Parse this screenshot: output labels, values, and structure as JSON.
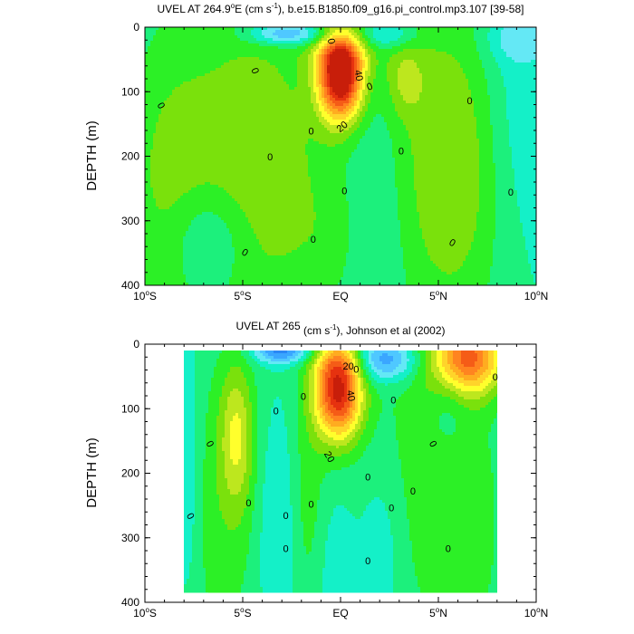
{
  "chart_data": [
    {
      "type": "heatmap",
      "title": "UVEL AT 264.9°E (cm s⁻¹), b.e15.B1850.f09_g16.pi_control.mp3.107 [39-58]",
      "title_main": "UVEL AT 264.9",
      "title_deg": "o",
      "title_mid": "E (cm s",
      "title_sup": "-1",
      "title_end": "), b.e15.B1850.f09_g16.pi_control.mp3.107 [39-58]",
      "xlabel": "",
      "ylabel": "DEPTH (m)",
      "xlim": [
        -10,
        10
      ],
      "ylim": [
        0,
        400
      ],
      "y_inverted": true,
      "x_ticks": [
        {
          "v": -10,
          "num": "10",
          "deg": "o",
          "hemi": "S"
        },
        {
          "v": -5,
          "num": "5",
          "deg": "o",
          "hemi": "S"
        },
        {
          "v": 0,
          "num": "EQ",
          "deg": "",
          "hemi": ""
        },
        {
          "v": 5,
          "num": "5",
          "deg": "o",
          "hemi": "N"
        },
        {
          "v": 10,
          "num": "10",
          "deg": "o",
          "hemi": "N"
        }
      ],
      "y_ticks": [
        "0",
        "100",
        "200",
        "300",
        "400"
      ],
      "y_tick_values": [
        0,
        100,
        200,
        300,
        400
      ],
      "grid": false,
      "contour_interval": 5,
      "contour_labels": [
        {
          "text": "40",
          "x": 0.9,
          "y": 75,
          "rot": 80
        },
        {
          "text": "20",
          "x": 0.1,
          "y": 155,
          "rot": -40
        },
        {
          "text": "0",
          "x": -0.5,
          "y": 22,
          "rot": 80
        },
        {
          "text": "0",
          "x": -4.4,
          "y": 68,
          "rot": 70
        },
        {
          "text": "0",
          "x": -3.6,
          "y": 202,
          "rot": 0
        },
        {
          "text": "0",
          "x": -1.5,
          "y": 162,
          "rot": 0
        },
        {
          "text": "0",
          "x": 1.5,
          "y": 93,
          "rot": -20
        },
        {
          "text": "0",
          "x": 3.1,
          "y": 193,
          "rot": 0
        },
        {
          "text": "0",
          "x": 0.2,
          "y": 255,
          "rot": 0
        },
        {
          "text": "0",
          "x": -1.4,
          "y": 330,
          "rot": 0
        },
        {
          "text": "0",
          "x": -4.9,
          "y": 350,
          "rot": 30
        },
        {
          "text": "0",
          "x": -9.2,
          "y": 122,
          "rot": 60
        },
        {
          "text": "0",
          "x": 6.6,
          "y": 115,
          "rot": 0
        },
        {
          "text": "0",
          "x": 8.7,
          "y": 257,
          "rot": 0
        },
        {
          "text": "0",
          "x": 5.7,
          "y": 335,
          "rot": 30
        }
      ],
      "features": [
        {
          "x": 0.0,
          "y": 75,
          "sx": 0.8,
          "sy": 48,
          "amp": 58
        },
        {
          "x": 0.1,
          "y": 45,
          "sx": 1.2,
          "sy": 18,
          "amp": 8
        },
        {
          "x": -4.5,
          "y": 210,
          "sx": 3.0,
          "sy": 200,
          "amp": 14
        },
        {
          "x": -9.0,
          "y": 250,
          "sx": 1.6,
          "sy": 170,
          "amp": 8
        },
        {
          "x": -6.8,
          "y": 330,
          "sx": 1.4,
          "sy": 60,
          "amp": -10
        },
        {
          "x": -2.8,
          "y": 10,
          "sx": 1.4,
          "sy": 12,
          "amp": -20
        },
        {
          "x": 2.6,
          "y": 12,
          "sx": 1.0,
          "sy": 14,
          "amp": -10
        },
        {
          "x": 9.2,
          "y": 20,
          "sx": 1.2,
          "sy": 25,
          "amp": -8
        },
        {
          "x": 3.3,
          "y": 80,
          "sx": 0.7,
          "sy": 40,
          "amp": 10
        },
        {
          "x": 4.3,
          "y": 200,
          "sx": 2.0,
          "sy": 220,
          "amp": 10
        },
        {
          "x": 6.5,
          "y": 220,
          "sx": 1.5,
          "sy": 170,
          "amp": 8
        },
        {
          "x": 8.8,
          "y": 120,
          "sx": 1.2,
          "sy": 150,
          "amp": -4
        },
        {
          "x": 1.8,
          "y": 300,
          "sx": 1.2,
          "sy": 150,
          "amp": -6
        },
        {
          "x": -0.2,
          "y": 330,
          "sx": 1.5,
          "sy": 80,
          "amp": 4
        }
      ]
    },
    {
      "type": "heatmap",
      "title": "UVEL AT 265 (cm s⁻¹), Johnson et al (2002)",
      "title_main": "UVEL AT 265",
      "title_deg": "",
      "title_mid": " (cm s",
      "title_sup": "-1",
      "title_end": "), Johnson et al (2002)",
      "xlabel": "",
      "ylabel": "DEPTH (m)",
      "xlim": [
        -10,
        10
      ],
      "ylim": [
        0,
        400
      ],
      "y_inverted": true,
      "data_xrange": [
        -8,
        8
      ],
      "data_yrange": [
        10,
        385
      ],
      "x_ticks": [
        {
          "v": -10,
          "num": "10",
          "deg": "o",
          "hemi": "S"
        },
        {
          "v": -5,
          "num": "5",
          "deg": "o",
          "hemi": "S"
        },
        {
          "v": 0,
          "num": "EQ",
          "deg": "",
          "hemi": ""
        },
        {
          "v": 5,
          "num": "5",
          "deg": "o",
          "hemi": "N"
        },
        {
          "v": 10,
          "num": "10",
          "deg": "o",
          "hemi": "N"
        }
      ],
      "y_ticks": [
        "0",
        "100",
        "200",
        "300",
        "400"
      ],
      "y_tick_values": [
        0,
        100,
        200,
        300,
        400
      ],
      "grid": false,
      "contour_interval": 5,
      "contour_labels": [
        {
          "text": "20",
          "x": 0.4,
          "y": 35,
          "rot": 0
        },
        {
          "text": "40",
          "x": 0.5,
          "y": 80,
          "rot": 80
        },
        {
          "text": "20",
          "x": -0.6,
          "y": 175,
          "rot": 60
        },
        {
          "text": "0",
          "x": 0.8,
          "y": 40,
          "rot": 0
        },
        {
          "text": "0",
          "x": -1.9,
          "y": 82,
          "rot": 0
        },
        {
          "text": "0",
          "x": -3.3,
          "y": 105,
          "rot": 0
        },
        {
          "text": "0",
          "x": -6.7,
          "y": 155,
          "rot": 60
        },
        {
          "text": "0",
          "x": -7.7,
          "y": 267,
          "rot": 60
        },
        {
          "text": "0",
          "x": -4.7,
          "y": 247,
          "rot": 0
        },
        {
          "text": "0",
          "x": -2.8,
          "y": 267,
          "rot": 0
        },
        {
          "text": "0",
          "x": -2.8,
          "y": 318,
          "rot": 0
        },
        {
          "text": "0",
          "x": -1.5,
          "y": 249,
          "rot": 0
        },
        {
          "text": "0",
          "x": 1.4,
          "y": 207,
          "rot": 0
        },
        {
          "text": "0",
          "x": 1.4,
          "y": 337,
          "rot": 0
        },
        {
          "text": "0",
          "x": 2.7,
          "y": 88,
          "rot": 0
        },
        {
          "text": "0",
          "x": 2.6,
          "y": 255,
          "rot": 0
        },
        {
          "text": "0",
          "x": 3.7,
          "y": 229,
          "rot": 0
        },
        {
          "text": "0",
          "x": 4.7,
          "y": 155,
          "rot": 60
        },
        {
          "text": "0",
          "x": 5.5,
          "y": 318,
          "rot": 0
        },
        {
          "text": "0",
          "x": 7.9,
          "y": 52,
          "rot": 0
        }
      ],
      "features": [
        {
          "x": -0.1,
          "y": 70,
          "sx": 0.85,
          "sy": 55,
          "amp": 52
        },
        {
          "x": 0.2,
          "y": 30,
          "sx": 1.2,
          "sy": 16,
          "amp": 6
        },
        {
          "x": -5.3,
          "y": 140,
          "sx": 0.6,
          "sy": 80,
          "amp": 16
        },
        {
          "x": -6.0,
          "y": 250,
          "sx": 2.0,
          "sy": 180,
          "amp": 8
        },
        {
          "x": -7.8,
          "y": 200,
          "sx": 0.5,
          "sy": 150,
          "amp": -8
        },
        {
          "x": -1.7,
          "y": 250,
          "sx": 0.7,
          "sy": 150,
          "amp": 8
        },
        {
          "x": -3.0,
          "y": 12,
          "sx": 1.0,
          "sy": 12,
          "amp": -22
        },
        {
          "x": -3.2,
          "y": 280,
          "sx": 0.9,
          "sy": 130,
          "amp": -8
        },
        {
          "x": 2.2,
          "y": 25,
          "sx": 1.2,
          "sy": 22,
          "amp": -22
        },
        {
          "x": 6.5,
          "y": 20,
          "sx": 1.3,
          "sy": 42,
          "amp": 40
        },
        {
          "x": 4.0,
          "y": 200,
          "sx": 2.0,
          "sy": 220,
          "amp": 7
        },
        {
          "x": 6.8,
          "y": 280,
          "sx": 1.2,
          "sy": 160,
          "amp": 6
        },
        {
          "x": 2.2,
          "y": 320,
          "sx": 0.8,
          "sy": 100,
          "amp": -6
        },
        {
          "x": -0.4,
          "y": 350,
          "sx": 0.8,
          "sy": 80,
          "amp": -4
        },
        {
          "x": 5.6,
          "y": 80,
          "sx": 0.7,
          "sy": 50,
          "amp": -6
        }
      ]
    }
  ],
  "colors": {
    "levels": [
      -30,
      -25,
      -20,
      -15,
      -10,
      -5,
      0,
      5,
      10,
      15,
      20,
      25,
      30,
      35,
      40,
      45,
      50
    ],
    "palette": [
      "#0a46d2",
      "#1a6af0",
      "#2a88f5",
      "#3aa6ff",
      "#4fc8ff",
      "#64e8f5",
      "#14f0c8",
      "#1cf07c",
      "#2cf026",
      "#7ae10c",
      "#bde71e",
      "#ffff2c",
      "#ffd42a",
      "#ffac20",
      "#ff8420",
      "#f55c17",
      "#e6320f",
      "#c81e0a"
    ]
  }
}
